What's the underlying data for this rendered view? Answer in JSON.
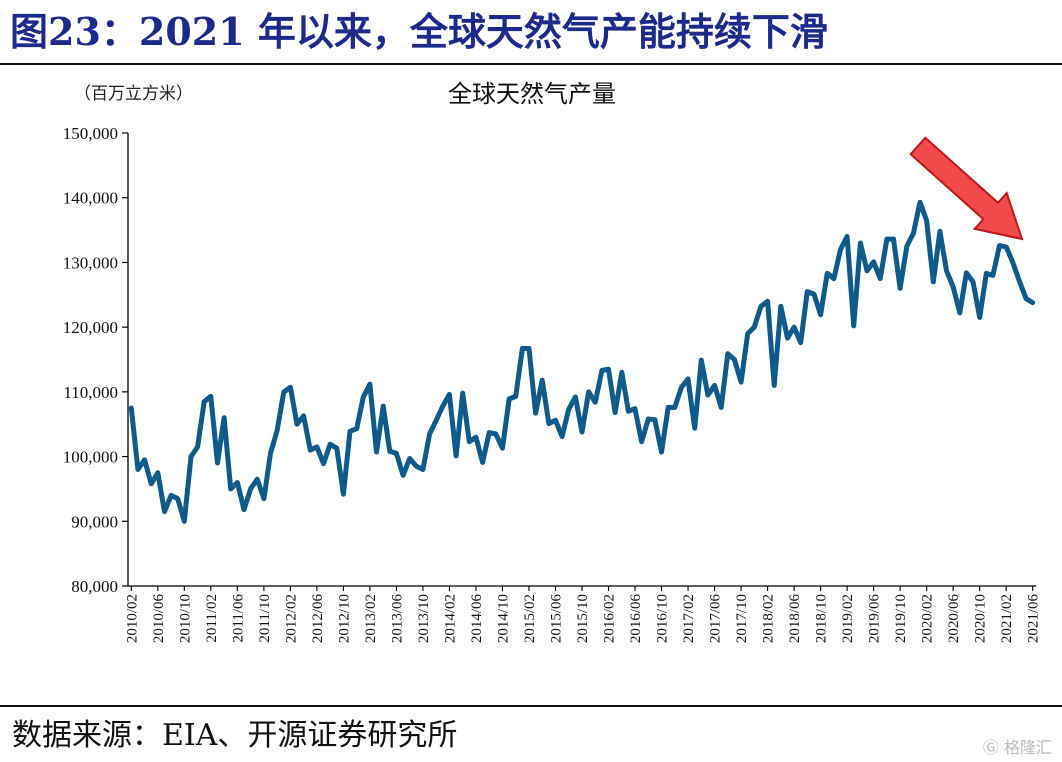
{
  "figure": {
    "title": "图23：2021 年以来，全球天然气产能持续下滑",
    "source": "数据来源：EIA、开源证券研究所",
    "watermark": "格隆汇"
  },
  "colors": {
    "line": "#0e5a8a",
    "title": "#1c2a8c",
    "arrow_fill": "#f14a4a",
    "arrow_stroke": "#c01818"
  },
  "chart_data": {
    "type": "line",
    "title": "全球天然气产量",
    "unit_label": "（百万立方米）",
    "ylim": [
      80000,
      150000
    ],
    "yticks": [
      80000,
      90000,
      100000,
      110000,
      120000,
      130000,
      140000,
      150000
    ],
    "ytick_labels": [
      "80,000",
      "90,000",
      "100,000",
      "110,000",
      "120,000",
      "130,000",
      "140,000",
      "150,000"
    ],
    "xtick_labels": [
      "2010/02",
      "2010/06",
      "2010/10",
      "2011/02",
      "2011/06",
      "2011/10",
      "2012/02",
      "2012/06",
      "2012/10",
      "2013/02",
      "2013/06",
      "2013/10",
      "2014/02",
      "2014/06",
      "2014/10",
      "2015/02",
      "2015/06",
      "2015/10",
      "2016/02",
      "2016/06",
      "2016/10",
      "2017/02",
      "2017/06",
      "2017/10",
      "2018/02",
      "2018/06",
      "2018/10",
      "2019/02",
      "2019/06",
      "2019/10",
      "2020/02",
      "2020/06",
      "2020/10",
      "2021/02",
      "2021/06"
    ],
    "grid": false,
    "annotation": "red downward arrow near the 2021 peak",
    "series": [
      {
        "values": [
          107500,
          98000,
          99500,
          95800,
          97500,
          91500,
          94000,
          93500,
          90000,
          100000,
          101500,
          108500,
          109300,
          99000,
          106000,
          95000,
          96000,
          91800,
          95000,
          96500,
          93500,
          100500,
          104000,
          110000,
          110700,
          105000,
          106300,
          101000,
          101500,
          98900,
          101900,
          101300,
          94200,
          103900,
          104300,
          109200,
          111200,
          100700,
          107800,
          100800,
          100500,
          97100,
          99700,
          98500,
          98000,
          103500,
          105600,
          107800,
          109600,
          100100,
          109800,
          102300,
          103000,
          99100,
          103700,
          103500,
          101300,
          108900,
          109300,
          116700,
          116700,
          106700,
          111800,
          105100,
          105600,
          103100,
          107300,
          109200,
          103800,
          110000,
          108400,
          113300,
          113500,
          106800,
          113000,
          107000,
          107400,
          102300,
          105800,
          105700,
          100700,
          107600,
          107600,
          110700,
          112000,
          104400,
          114900,
          109500,
          111000,
          107600,
          115900,
          115000,
          111500,
          119000,
          120000,
          123200,
          124000,
          111000,
          123200,
          118300,
          120000,
          117600,
          125500,
          125100,
          121900,
          128300,
          127500,
          132000,
          134000,
          120200,
          133000,
          128700,
          130100,
          127500,
          133600,
          133600,
          126000,
          132500,
          134500,
          139300,
          136500,
          127000,
          134800,
          128700,
          126200,
          122200,
          128400,
          127000,
          121500,
          128300,
          128000,
          132600,
          132400,
          130000,
          127100,
          124400,
          123800
        ]
      }
    ]
  }
}
